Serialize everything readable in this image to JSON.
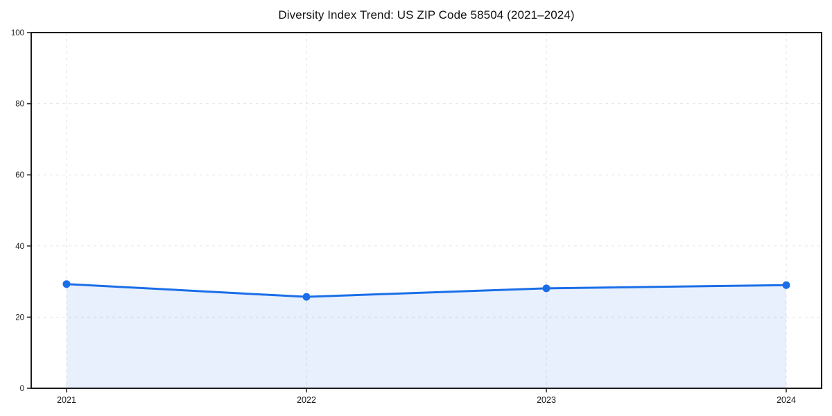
{
  "chart": {
    "title": "Diversity Index Trend: US ZIP Code 58504 (2021–2024)"
  },
  "chart_data": {
    "type": "area",
    "title": "Diversity Index Trend: US ZIP Code 58504 (2021–2024)",
    "series_name": "Diversity Index",
    "x": [
      2021,
      2022,
      2023,
      2024
    ],
    "xticklabels": [
      "2021",
      "2022",
      "2023",
      "2024"
    ],
    "values": [
      29.3,
      25.7,
      28.1,
      29.0
    ],
    "xlabel": "",
    "ylabel": "",
    "ylim": [
      0,
      100
    ],
    "yticks": [
      0,
      20,
      40,
      60,
      80,
      100
    ],
    "grid": "dashed-both-axes",
    "legend": "none",
    "colors": {
      "line": "#1a6ee8",
      "marker": "#1a6ee8",
      "fill": "#1a6ee8",
      "fill_opacity": 0.1,
      "grid": "#e2e2e2",
      "spine": "#1a1a1a",
      "tick_text": "#1a1a1a",
      "background": "#ffffff"
    }
  }
}
